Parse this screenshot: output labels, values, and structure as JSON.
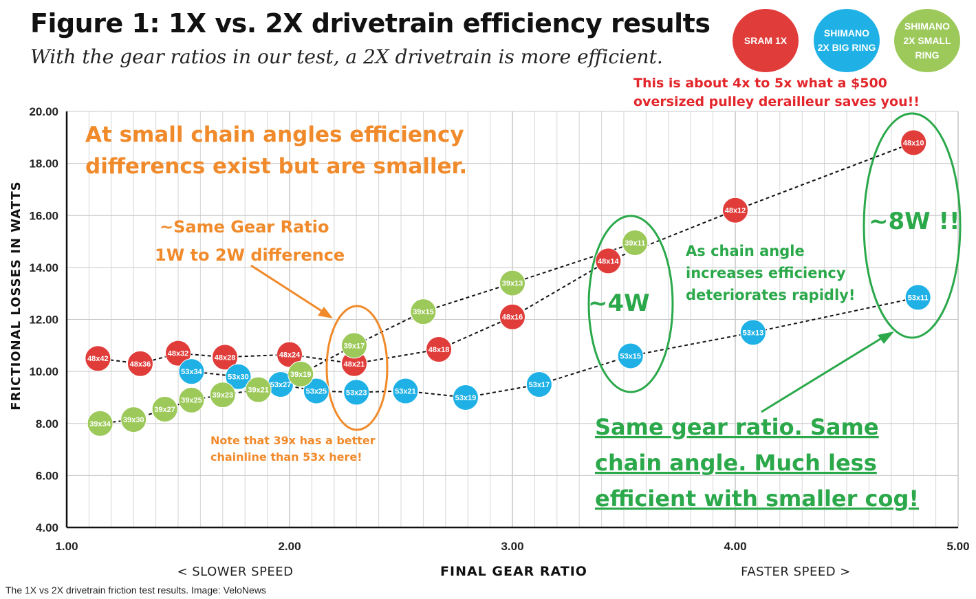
{
  "header": {
    "title": "Figure 1: 1X vs. 2X drivetrain efficiency results",
    "subtitle": "With the gear ratios in our test, a 2X drivetrain is more efficient."
  },
  "legend": [
    {
      "label_line1": "SRAM 1X",
      "label_line2": "",
      "label_line3": "",
      "color": "#e03c3a"
    },
    {
      "label_line1": "SHIMANO",
      "label_line2": "2X BIG RING",
      "label_line3": "",
      "color": "#1fb1e6"
    },
    {
      "label_line1": "SHIMANO",
      "label_line2": "2X SMALL",
      "label_line3": "RING",
      "color": "#9cc95a"
    }
  ],
  "caption": "The 1X vs 2X drivetrain friction test results. Image: VeloNews",
  "annotations": {
    "small_angles_line1": "At small chain angles efficiency",
    "small_angles_line2": "differencs exist but are smaller.",
    "same_ratio_line1": "~Same Gear Ratio",
    "same_ratio_line2": "1W to 2W difference",
    "note_line1": "Note that 39x has a better",
    "note_line2": "chainline than 53x here!",
    "pulley_line1": "This is about 4x to 5x what a $500",
    "pulley_line2": "oversized pulley derailleur saves you!!",
    "four_w": "~4W",
    "eight_w": "~8W !!",
    "chain_angle_line1": "As chain angle",
    "chain_angle_line2": "increases efficiency",
    "chain_angle_line3": "deteriorates rapidly!",
    "same_gear_line1": "Same gear ratio.  Same",
    "same_gear_line2": "chain angle.  Much less",
    "same_gear_line3": "efficient with smaller cog!"
  },
  "chart_data": {
    "type": "scatter",
    "title": "Figure 1: 1X vs. 2X drivetrain efficiency results",
    "xlabel": "FINAL GEAR RATIO",
    "ylabel": "FRICTIONAL LOSSES IN WATTS",
    "xlabel_left": "< SLOWER SPEED",
    "xlabel_right": "FASTER SPEED >",
    "xlim": [
      1.0,
      5.0
    ],
    "ylim": [
      4.0,
      20.0
    ],
    "x_ticks": [
      "1.00",
      "2.00",
      "3.00",
      "4.00",
      "5.00"
    ],
    "y_ticks": [
      "4.00",
      "6.00",
      "8.00",
      "10.00",
      "12.00",
      "14.00",
      "16.00",
      "18.00",
      "20.00"
    ],
    "series": [
      {
        "name": "SRAM 1X",
        "color": "#e03c3a",
        "points": [
          {
            "label": "48x42",
            "x": 1.14,
            "y": 10.5
          },
          {
            "label": "48x36",
            "x": 1.33,
            "y": 10.3
          },
          {
            "label": "48x32",
            "x": 1.5,
            "y": 10.7
          },
          {
            "label": "48x28",
            "x": 1.71,
            "y": 10.55
          },
          {
            "label": "48x24",
            "x": 2.0,
            "y": 10.65
          },
          {
            "label": "48x21",
            "x": 2.29,
            "y": 10.3
          },
          {
            "label": "48x18",
            "x": 2.67,
            "y": 10.85
          },
          {
            "label": "48x16",
            "x": 3.0,
            "y": 12.1
          },
          {
            "label": "48x14",
            "x": 3.43,
            "y": 14.25
          },
          {
            "label": "48x12",
            "x": 4.0,
            "y": 16.2
          },
          {
            "label": "48x10",
            "x": 4.8,
            "y": 18.8
          }
        ]
      },
      {
        "name": "SHIMANO 2X BIG RING",
        "color": "#1fb1e6",
        "points": [
          {
            "label": "53x34",
            "x": 1.56,
            "y": 10.0
          },
          {
            "label": "53x30",
            "x": 1.77,
            "y": 9.8
          },
          {
            "label": "53x27",
            "x": 1.96,
            "y": 9.5
          },
          {
            "label": "53x25",
            "x": 2.12,
            "y": 9.25
          },
          {
            "label": "53x23",
            "x": 2.3,
            "y": 9.2
          },
          {
            "label": "53x21",
            "x": 2.52,
            "y": 9.25
          },
          {
            "label": "53x19",
            "x": 2.79,
            "y": 9.0
          },
          {
            "label": "53x17",
            "x": 3.12,
            "y": 9.5
          },
          {
            "label": "53x15",
            "x": 3.53,
            "y": 10.6
          },
          {
            "label": "53x13",
            "x": 4.08,
            "y": 11.5
          },
          {
            "label": "53x11",
            "x": 4.82,
            "y": 12.85
          }
        ]
      },
      {
        "name": "SHIMANO 2X SMALL RING",
        "color": "#9cc95a",
        "points": [
          {
            "label": "39x34",
            "x": 1.15,
            "y": 8.0
          },
          {
            "label": "39x30",
            "x": 1.3,
            "y": 8.15
          },
          {
            "label": "39x27",
            "x": 1.44,
            "y": 8.55
          },
          {
            "label": "39x25",
            "x": 1.56,
            "y": 8.9
          },
          {
            "label": "39x23",
            "x": 1.7,
            "y": 9.1
          },
          {
            "label": "39x21",
            "x": 1.86,
            "y": 9.3
          },
          {
            "label": "39x19",
            "x": 2.05,
            "y": 9.9
          },
          {
            "label": "39x17",
            "x": 2.29,
            "y": 11.0
          },
          {
            "label": "39x15",
            "x": 2.6,
            "y": 12.3
          },
          {
            "label": "39x13",
            "x": 3.0,
            "y": 13.4
          },
          {
            "label": "39x11",
            "x": 3.55,
            "y": 14.95
          }
        ]
      }
    ]
  }
}
